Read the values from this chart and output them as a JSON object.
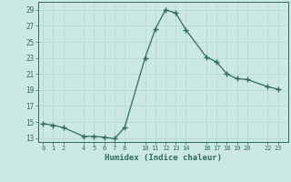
{
  "x": [
    0,
    1,
    2,
    4,
    5,
    6,
    7,
    8,
    10,
    11,
    12,
    13,
    14,
    16,
    17,
    18,
    19,
    20,
    22,
    23
  ],
  "y": [
    14.8,
    14.6,
    14.3,
    13.2,
    13.2,
    13.1,
    12.9,
    14.3,
    23.0,
    26.6,
    29.0,
    28.6,
    26.5,
    23.1,
    22.5,
    21.0,
    20.4,
    20.3,
    19.4,
    19.1
  ],
  "xticks": [
    0,
    1,
    2,
    4,
    5,
    6,
    7,
    8,
    10,
    11,
    12,
    13,
    14,
    16,
    17,
    18,
    19,
    20,
    22,
    23
  ],
  "yticks": [
    13,
    15,
    17,
    19,
    21,
    23,
    25,
    27,
    29
  ],
  "ylim": [
    12.5,
    30.0
  ],
  "xlim": [
    -0.5,
    24.0
  ],
  "xlabel": "Humidex (Indice chaleur)",
  "line_color": "#2e6b5e",
  "bg_color": "#cce8e4",
  "grid_color": "#b8d8d4",
  "marker": "+"
}
